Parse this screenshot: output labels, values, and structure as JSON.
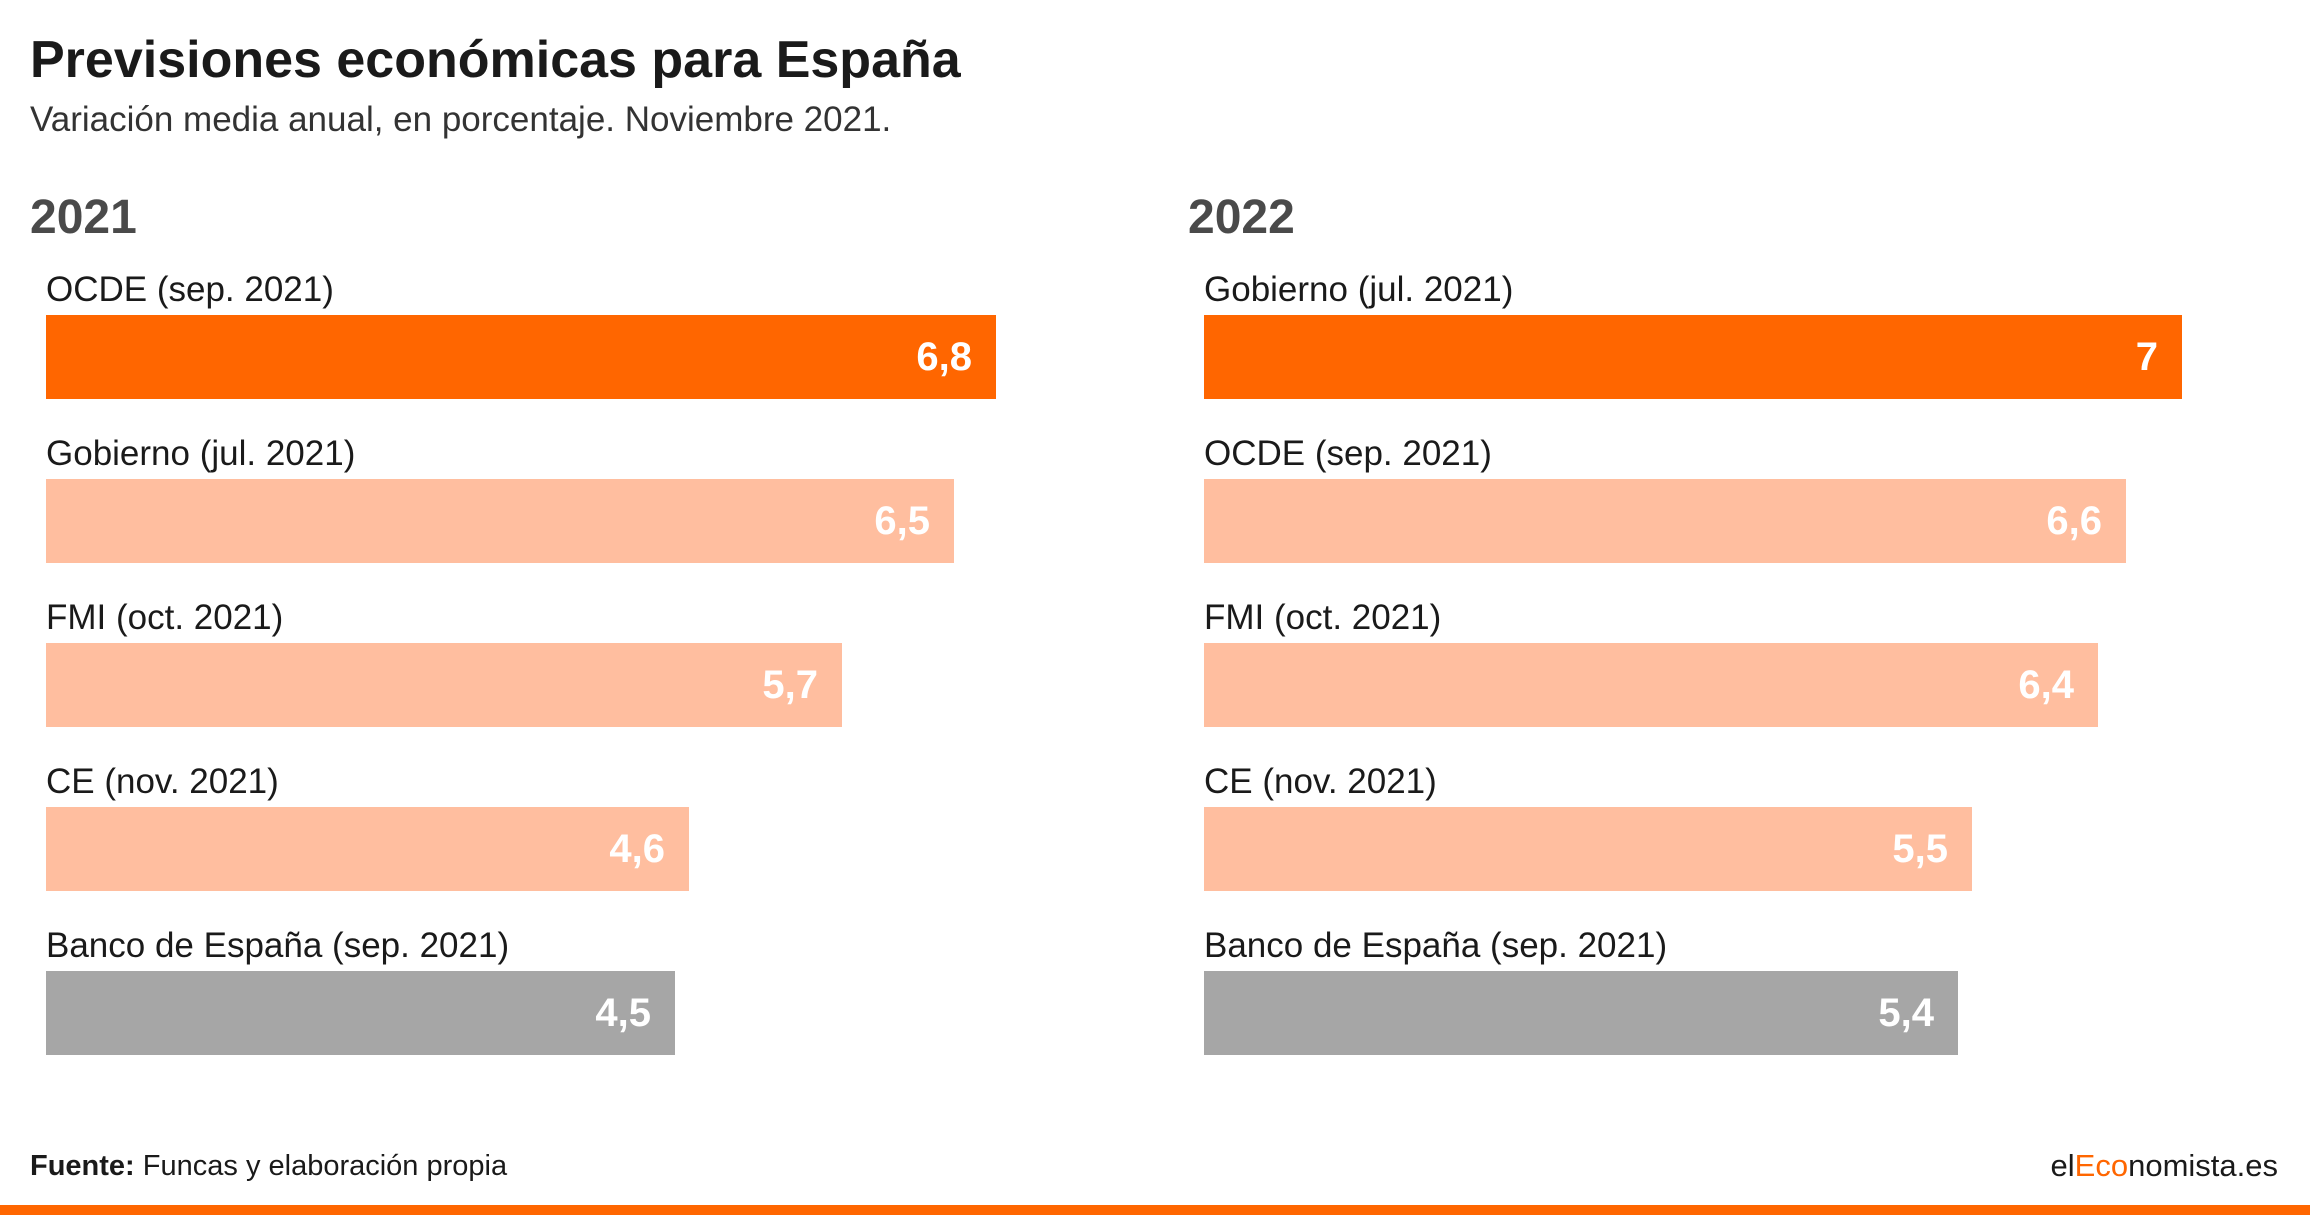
{
  "title": "Previsiones económicas para España",
  "subtitle": "Variación media anual, en porcentaje. Noviembre 2021.",
  "footer": {
    "source_label": "Fuente:",
    "source_text": "Funcas y elaboración propia",
    "brand_prefix": "el",
    "brand_accent": "Eco",
    "brand_suffix": "nomista.es"
  },
  "colors": {
    "highlight": "#ff6600",
    "standard": "#ffbe9f",
    "neutral": "#a6a6a6",
    "accent": "#ff6600"
  },
  "chart_data": [
    {
      "type": "bar",
      "orientation": "horizontal",
      "title": "2021",
      "categories": [
        "OCDE (sep. 2021)",
        "Gobierno (jul. 2021)",
        "FMI (oct. 2021)",
        "CE (nov. 2021)",
        "Banco de España (sep. 2021)"
      ],
      "values": [
        6.8,
        6.5,
        5.7,
        4.6,
        4.5
      ],
      "value_labels": [
        "6,8",
        "6,5",
        "5,7",
        "4,6",
        "4,5"
      ],
      "bar_styles": [
        "highlight",
        "standard",
        "standard",
        "standard",
        "neutral"
      ],
      "xlim": [
        0,
        7
      ],
      "grid": false
    },
    {
      "type": "bar",
      "orientation": "horizontal",
      "title": "2022",
      "categories": [
        "Gobierno (jul. 2021)",
        "OCDE (sep. 2021)",
        "FMI (oct. 2021)",
        "CE (nov. 2021)",
        "Banco de España (sep. 2021)"
      ],
      "values": [
        7,
        6.6,
        6.4,
        5.5,
        5.4
      ],
      "value_labels": [
        "7",
        "6,6",
        "6,4",
        "5,5",
        "5,4"
      ],
      "bar_styles": [
        "highlight",
        "standard",
        "standard",
        "standard",
        "neutral"
      ],
      "xlim": [
        0,
        7
      ],
      "grid": false
    }
  ]
}
